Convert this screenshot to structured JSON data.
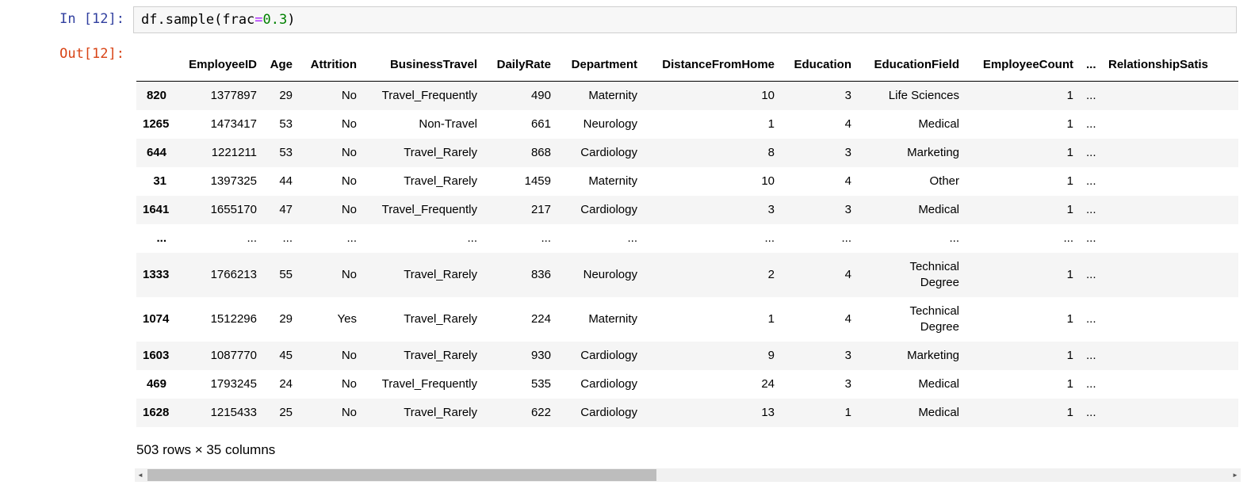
{
  "cell": {
    "in_prompt": "In [12]:",
    "out_prompt": "Out[12]:",
    "code": {
      "pre": "df.sample(frac",
      "operator": "=",
      "number": "0.3",
      "post": ")"
    }
  },
  "table": {
    "columns": [
      "",
      "EmployeeID",
      "Age",
      "Attrition",
      "BusinessTravel",
      "DailyRate",
      "Department",
      "DistanceFromHome",
      "Education",
      "EducationField",
      "EmployeeCount",
      "...",
      "RelationshipSatis"
    ],
    "rows": [
      {
        "index": "820",
        "cells": [
          "1377897",
          "29",
          "No",
          "Travel_Frequently",
          "490",
          "Maternity",
          "10",
          "3",
          "Life Sciences",
          "1",
          "...",
          ""
        ]
      },
      {
        "index": "1265",
        "cells": [
          "1473417",
          "53",
          "No",
          "Non-Travel",
          "661",
          "Neurology",
          "1",
          "4",
          "Medical",
          "1",
          "...",
          ""
        ]
      },
      {
        "index": "644",
        "cells": [
          "1221211",
          "53",
          "No",
          "Travel_Rarely",
          "868",
          "Cardiology",
          "8",
          "3",
          "Marketing",
          "1",
          "...",
          ""
        ]
      },
      {
        "index": "31",
        "cells": [
          "1397325",
          "44",
          "No",
          "Travel_Rarely",
          "1459",
          "Maternity",
          "10",
          "4",
          "Other",
          "1",
          "...",
          ""
        ]
      },
      {
        "index": "1641",
        "cells": [
          "1655170",
          "47",
          "No",
          "Travel_Frequently",
          "217",
          "Cardiology",
          "3",
          "3",
          "Medical",
          "1",
          "...",
          ""
        ]
      },
      {
        "index": "...",
        "cells": [
          "...",
          "...",
          "...",
          "...",
          "...",
          "...",
          "...",
          "...",
          "...",
          "...",
          "...",
          ""
        ]
      },
      {
        "index": "1333",
        "cells": [
          "1766213",
          "55",
          "No",
          "Travel_Rarely",
          "836",
          "Neurology",
          "2",
          "4",
          "Technical Degree",
          "1",
          "...",
          ""
        ]
      },
      {
        "index": "1074",
        "cells": [
          "1512296",
          "29",
          "Yes",
          "Travel_Rarely",
          "224",
          "Maternity",
          "1",
          "4",
          "Technical Degree",
          "1",
          "...",
          ""
        ]
      },
      {
        "index": "1603",
        "cells": [
          "1087770",
          "45",
          "No",
          "Travel_Rarely",
          "930",
          "Cardiology",
          "9",
          "3",
          "Marketing",
          "1",
          "...",
          ""
        ]
      },
      {
        "index": "469",
        "cells": [
          "1793245",
          "24",
          "No",
          "Travel_Frequently",
          "535",
          "Cardiology",
          "24",
          "3",
          "Medical",
          "1",
          "...",
          ""
        ]
      },
      {
        "index": "1628",
        "cells": [
          "1215433",
          "25",
          "No",
          "Travel_Rarely",
          "622",
          "Cardiology",
          "13",
          "1",
          "Medical",
          "1",
          "...",
          ""
        ]
      }
    ],
    "summary": "503 rows × 35 columns"
  },
  "scrollbar": {
    "left_arrow": "◄",
    "right_arrow": "►"
  },
  "colors": {
    "input_prompt": "#303F9F",
    "output_prompt": "#D84315",
    "code_operator": "#AA22FF",
    "code_number": "#008000",
    "row_stripe": "#f5f5f5",
    "scroll_track": "#f1f1f1",
    "scroll_thumb": "#bdbdbd"
  }
}
